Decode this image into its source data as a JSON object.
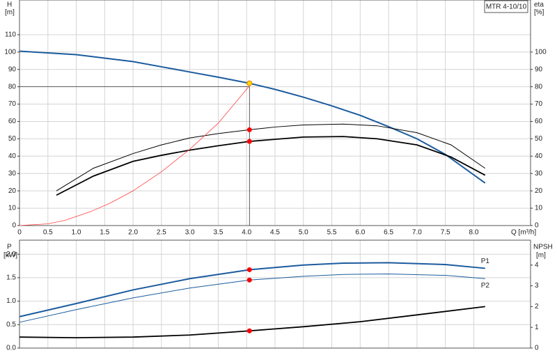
{
  "chart_data": [
    {
      "type": "line",
      "title": "MTR 4-10/10",
      "ylabel": "H",
      "yunit": "[m]",
      "y2label": "eta",
      "y2unit": "[%]",
      "xlabel": "Q [m³/h]",
      "xlim": [
        0,
        9
      ],
      "ylim": [
        0,
        130
      ],
      "y2lim": [
        0,
        130
      ],
      "grid": true,
      "xticks": [
        0,
        {
          "value": 0.5,
          "label": "0.5"
        },
        {
          "value": 1,
          "label": "1.0"
        },
        {
          "value": 1.5,
          "label": "1.5"
        },
        {
          "value": 2,
          "label": "2.0"
        },
        {
          "value": 2.5,
          "label": "2.5"
        },
        {
          "value": 3,
          "label": "3.0"
        },
        {
          "value": 3.5,
          "label": "3.5"
        },
        {
          "value": 4,
          "label": "4.0"
        },
        {
          "value": 4.5,
          "label": "4.5"
        },
        {
          "value": 5,
          "label": "5.0"
        },
        {
          "value": 5.5,
          "label": "5.5"
        },
        {
          "value": 6,
          "label": "6.0"
        },
        {
          "value": 6.5,
          "label": "6.5"
        },
        {
          "value": 7,
          "label": "7.0"
        },
        {
          "value": 7.5,
          "label": "7.5"
        },
        {
          "value": 8,
          "label": "8.0"
        }
      ],
      "yticks": [
        0,
        10,
        20,
        30,
        40,
        50,
        60,
        70,
        80,
        90,
        100,
        110
      ],
      "y2ticks": [
        0,
        10,
        20,
        30,
        40,
        50,
        60,
        70,
        80,
        90,
        100
      ],
      "series": [
        {
          "color": "#1b5b9e",
          "width": 2,
          "x": [
            0,
            0.5,
            1,
            1.5,
            2,
            2.5,
            3,
            3.5,
            4.05,
            4.5,
            5,
            5.5,
            6,
            6.5,
            7,
            7.5,
            8.2
          ],
          "values": [
            100.5,
            99.5,
            98.5,
            96.5,
            94.5,
            91.5,
            88.5,
            85.5,
            82,
            78.5,
            74,
            69,
            63.5,
            57,
            50,
            41,
            24.5
          ]
        },
        {
          "color": "#000000",
          "width": 1,
          "axis": "y2",
          "x": [
            0.65,
            1.3,
            2,
            2.5,
            3,
            3.5,
            4.05,
            4.5,
            5,
            5.7,
            6.3,
            7,
            7.6,
            8.2
          ],
          "values": [
            20,
            33,
            41.5,
            46.5,
            50.5,
            53,
            55.2,
            56.8,
            58,
            58.5,
            57.5,
            53.5,
            46.5,
            33
          ]
        },
        {
          "color": "#000000",
          "width": 1.8,
          "axis": "y2",
          "x": [
            0.65,
            1.3,
            2,
            2.5,
            3,
            3.5,
            4.05,
            4.5,
            5,
            5.7,
            6.3,
            7,
            7.6,
            8.2
          ],
          "values": [
            17.5,
            28.5,
            37,
            40.5,
            43.5,
            46,
            48.5,
            49.7,
            51,
            51.3,
            50,
            46.5,
            39.5,
            29
          ]
        },
        {
          "color": "#ff4040",
          "width": 0.8,
          "x": [
            0,
            0.5,
            0.8,
            1.25,
            1.6,
            2,
            2.5,
            3,
            3.5,
            4.05
          ],
          "values": [
            0,
            1,
            3,
            8,
            13,
            20,
            31,
            44,
            59,
            80.5
          ]
        }
      ],
      "duty_point": {
        "x": 4.05,
        "y": 80
      },
      "points": [
        {
          "x": 4.05,
          "y": 82,
          "color": "#ffd700"
        },
        {
          "x": 4.05,
          "y": 55.2,
          "color": "#ff0000",
          "axis": "y2"
        },
        {
          "x": 4.05,
          "y": 48.5,
          "color": "#ff0000",
          "axis": "y2"
        }
      ]
    },
    {
      "type": "line",
      "ylabel": "P",
      "yunit": "[kW]",
      "y2label": "NPSH",
      "y2unit": "[m]",
      "xlim": [
        0,
        9
      ],
      "ylim": [
        0,
        2.3
      ],
      "y2lim": [
        0,
        5.2
      ],
      "grid": true,
      "yticks": [
        {
          "value": 0,
          "label": "0.0"
        },
        {
          "value": 0.5,
          "label": "0.5"
        },
        {
          "value": 1,
          "label": "1.0"
        },
        {
          "value": 1.5,
          "label": "1.5"
        },
        {
          "value": 2,
          "label": "2.0"
        }
      ],
      "y2ticks": [
        0,
        1,
        2,
        3,
        4
      ],
      "series": [
        {
          "name": "P1",
          "color": "#1b5b9e",
          "width": 2,
          "x": [
            0,
            1,
            2,
            3,
            4.05,
            5,
            5.7,
            6.5,
            7.5,
            8.2
          ],
          "values": [
            0.67,
            0.95,
            1.24,
            1.48,
            1.67,
            1.77,
            1.81,
            1.82,
            1.78,
            1.7
          ]
        },
        {
          "name": "P2",
          "color": "#1b5b9e",
          "width": 1,
          "x": [
            0,
            1,
            2,
            3,
            4.05,
            5,
            5.7,
            6.5,
            7.5,
            8.2
          ],
          "values": [
            0.55,
            0.82,
            1.07,
            1.28,
            1.45,
            1.53,
            1.57,
            1.58,
            1.55,
            1.48
          ]
        },
        {
          "color": "#000000",
          "width": 1.8,
          "axis": "y2",
          "x": [
            0,
            1,
            2,
            3,
            4.05,
            5,
            6,
            7,
            8.2
          ],
          "values": [
            0.53,
            0.5,
            0.53,
            0.63,
            0.83,
            1.03,
            1.27,
            1.6,
            2
          ]
        }
      ],
      "points": [
        {
          "x": 4.05,
          "y": 1.67,
          "color": "#ff0000"
        },
        {
          "x": 4.05,
          "y": 1.45,
          "color": "#ff0000"
        },
        {
          "x": 4.05,
          "y": 0.83,
          "color": "#ff0000",
          "axis": "y2"
        }
      ]
    }
  ]
}
